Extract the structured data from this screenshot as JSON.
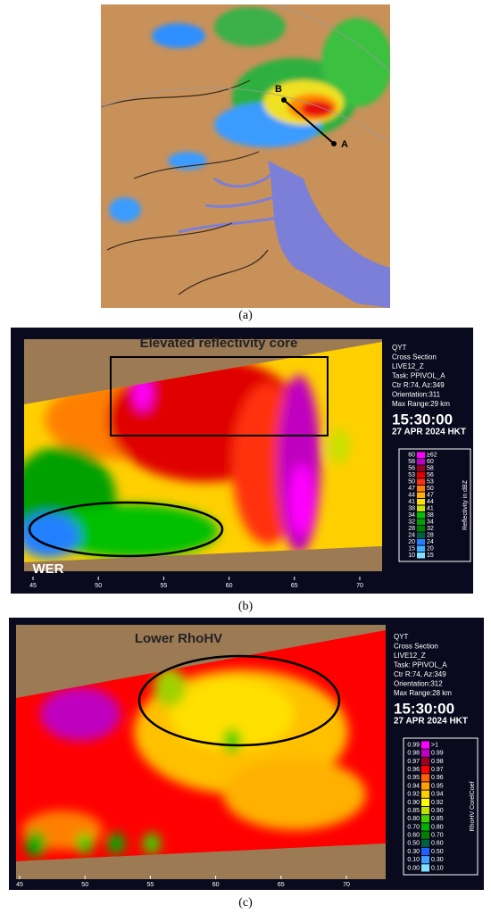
{
  "panel_a": {
    "label": "(a)",
    "point_a": "A",
    "point_b": "B"
  },
  "panel_b": {
    "label": "(b)",
    "annotation_core": "Elevated reflectivity core",
    "annotation_wer": "WER",
    "info_lines": [
      "QYT",
      "Cross Section",
      "LIVE12_Z",
      "Task: PPIVOL_A",
      "Ctr R:74, Az:349",
      "Orientation:311",
      "Max Range:29 km"
    ],
    "time": "15:30:00",
    "date": "27 APR 2024 HKT",
    "legend_title": "Reflectivity in dBZ",
    "legend": [
      {
        "low": "60",
        "high": "≥62",
        "color": "#ff00ff"
      },
      {
        "low": "58",
        "high": "60",
        "color": "#c000c0"
      },
      {
        "low": "56",
        "high": "58",
        "color": "#a00020"
      },
      {
        "low": "53",
        "high": "56",
        "color": "#e00000"
      },
      {
        "low": "50",
        "high": "53",
        "color": "#ff3010"
      },
      {
        "low": "47",
        "high": "50",
        "color": "#ff8000"
      },
      {
        "low": "44",
        "high": "47",
        "color": "#ffb000"
      },
      {
        "low": "41",
        "high": "44",
        "color": "#ffe000"
      },
      {
        "low": "38",
        "high": "41",
        "color": "#c8e000"
      },
      {
        "low": "34",
        "high": "38",
        "color": "#00c000"
      },
      {
        "low": "32",
        "high": "34",
        "color": "#00a000"
      },
      {
        "low": "28",
        "high": "32",
        "color": "#008000"
      },
      {
        "low": "24",
        "high": "28",
        "color": "#006040"
      },
      {
        "low": "20",
        "high": "24",
        "color": "#2080ff"
      },
      {
        "low": "15",
        "high": "20",
        "color": "#40b0ff"
      },
      {
        "low": "10",
        "high": "15",
        "color": "#80e0ff"
      }
    ],
    "x_ticks": [
      45,
      50,
      55,
      60,
      65,
      70
    ]
  },
  "panel_c": {
    "label": "(c)",
    "annotation": "Lower RhoHV",
    "info_lines": [
      "QYT",
      "Cross Section",
      "LIVE12_Z",
      "Task: PPIVOL_A",
      "Ctr R:74, Az:349",
      "Orientation:312",
      "Max Range:28 km"
    ],
    "time": "15:30:00",
    "date": "27 APR 2024 HKT",
    "legend_title": "RhoHV CorelCoef",
    "legend": [
      {
        "low": "0.99",
        "high": ">1",
        "color": "#ff00ff"
      },
      {
        "low": "0.98",
        "high": "0.99",
        "color": "#c000c0"
      },
      {
        "low": "0.97",
        "high": "0.98",
        "color": "#a00020"
      },
      {
        "low": "0.96",
        "high": "0.97",
        "color": "#ff0000"
      },
      {
        "low": "0.95",
        "high": "0.96",
        "color": "#ff6000"
      },
      {
        "low": "0.94",
        "high": "0.95",
        "color": "#ffa000"
      },
      {
        "low": "0.92",
        "high": "0.94",
        "color": "#ffd000"
      },
      {
        "low": "0.90",
        "high": "0.92",
        "color": "#ffff00"
      },
      {
        "low": "0.85",
        "high": "0.90",
        "color": "#c0e000"
      },
      {
        "low": "0.80",
        "high": "0.85",
        "color": "#40d000"
      },
      {
        "low": "0.70",
        "high": "0.80",
        "color": "#00b000"
      },
      {
        "low": "0.60",
        "high": "0.70",
        "color": "#008000"
      },
      {
        "low": "0.50",
        "high": "0.60",
        "color": "#006040"
      },
      {
        "low": "0.30",
        "high": "0.50",
        "color": "#2060ff"
      },
      {
        "low": "0.10",
        "high": "0.30",
        "color": "#40a0ff"
      },
      {
        "low": "0.00",
        "high": "0.10",
        "color": "#80e0ff"
      }
    ],
    "x_ticks": [
      45,
      50,
      55,
      60,
      65,
      70
    ]
  }
}
